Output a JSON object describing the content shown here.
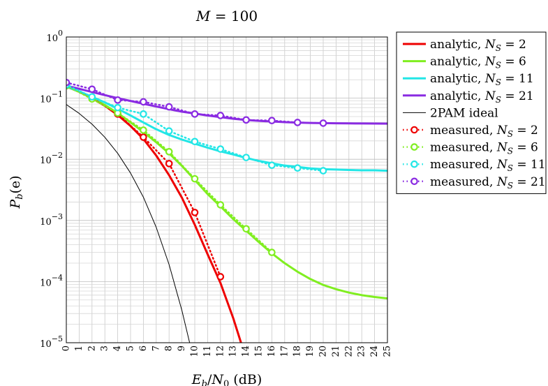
{
  "chart_data": {
    "type": "line",
    "title": "M = 100",
    "title_parts": {
      "var": "M",
      "eq": " = 100"
    },
    "xlabel": "Eb/N0 (dB)",
    "xlabel_parts": {
      "E": "E",
      "b": "b",
      "slash": "/",
      "N": "N",
      "zero": "0",
      "unit": " (dB)"
    },
    "ylabel": "Pb(e)",
    "ylabel_parts": {
      "P": "P",
      "b": "b",
      "arg": "(e)"
    },
    "xlim": [
      0,
      25
    ],
    "ylim": [
      1e-05,
      1
    ],
    "y_scale": "log",
    "grid": true,
    "legend_position": "outside-right-top",
    "x_ticks": [
      "0",
      "1",
      "2",
      "3",
      "4",
      "5",
      "6",
      "7",
      "8",
      "9",
      "10",
      "11",
      "12",
      "13",
      "14",
      "15",
      "16",
      "17",
      "18",
      "19",
      "20",
      "21",
      "22",
      "23",
      "24",
      "25"
    ],
    "y_ticks": [
      {
        "base": "10",
        "exp": "0",
        "value": 1
      },
      {
        "base": "10",
        "exp": "−1",
        "value": 0.1
      },
      {
        "base": "10",
        "exp": "−2",
        "value": 0.01
      },
      {
        "base": "10",
        "exp": "−3",
        "value": 0.001
      },
      {
        "base": "10",
        "exp": "−4",
        "value": 0.0001
      },
      {
        "base": "10",
        "exp": "−5",
        "value": 1e-05
      }
    ],
    "series": [
      {
        "name": "analytic, NS = 2",
        "legend": {
          "text": "analytic, ",
          "var": "N",
          "sub": "S",
          "eq": " = 2"
        },
        "color": "#ee0000",
        "style": "solid",
        "width": 3,
        "x": [
          0,
          1,
          2,
          3,
          4,
          5,
          6,
          7,
          8,
          9,
          10,
          11,
          12,
          13,
          13.6
        ],
        "y": [
          0.155,
          0.127,
          0.1,
          0.075,
          0.053,
          0.035,
          0.0215,
          0.0115,
          0.0055,
          0.00235,
          0.00085,
          0.00028,
          9.5e-05,
          2.5e-05,
          1e-05
        ]
      },
      {
        "name": "analytic, NS = 6",
        "legend": {
          "text": "analytic, ",
          "var": "N",
          "sub": "S",
          "eq": " = 6"
        },
        "color": "#80ee20",
        "style": "solid",
        "width": 3,
        "x": [
          0,
          1,
          2,
          3,
          4,
          5,
          6,
          7,
          8,
          9,
          10,
          11,
          12,
          13,
          14,
          15,
          16,
          17,
          18,
          19,
          20,
          21,
          22,
          23,
          24,
          25
        ],
        "y": [
          0.155,
          0.127,
          0.1,
          0.077,
          0.057,
          0.04,
          0.028,
          0.019,
          0.0125,
          0.0078,
          0.0046,
          0.0027,
          0.0017,
          0.00105,
          0.00068,
          0.00044,
          0.00029,
          0.0002,
          0.000145,
          0.00011,
          8.8e-05,
          7.5e-05,
          6.6e-05,
          6e-05,
          5.6e-05,
          5.3e-05
        ]
      },
      {
        "name": "analytic, NS = 11",
        "legend": {
          "text": "analytic, ",
          "var": "N",
          "sub": "S",
          "eq": " = 11"
        },
        "color": "#22e6e6",
        "style": "solid",
        "width": 3,
        "x": [
          0,
          1,
          2,
          3,
          4,
          5,
          6,
          7,
          8,
          9,
          10,
          11,
          12,
          13,
          14,
          15,
          16,
          17,
          18,
          19,
          20,
          21,
          22,
          23,
          24,
          25
        ],
        "y": [
          0.155,
          0.129,
          0.105,
          0.085,
          0.067,
          0.052,
          0.04,
          0.031,
          0.025,
          0.021,
          0.018,
          0.0155,
          0.0135,
          0.012,
          0.0105,
          0.0094,
          0.0086,
          0.0079,
          0.0075,
          0.0071,
          0.0069,
          0.0068,
          0.0067,
          0.0066,
          0.0066,
          0.0065
        ]
      },
      {
        "name": "analytic, NS = 21",
        "legend": {
          "text": "analytic, ",
          "var": "N",
          "sub": "S",
          "eq": " = 21"
        },
        "color": "#8a2be2",
        "style": "solid",
        "width": 3,
        "x": [
          0,
          1,
          2,
          3,
          4,
          5,
          6,
          7,
          8,
          9,
          10,
          11,
          12,
          13,
          14,
          15,
          16,
          17,
          18,
          19,
          20,
          21,
          22,
          23,
          24,
          25
        ],
        "y": [
          0.16,
          0.142,
          0.126,
          0.112,
          0.1,
          0.09,
          0.081,
          0.073,
          0.066,
          0.06,
          0.056,
          0.052,
          0.049,
          0.046,
          0.044,
          0.0425,
          0.0415,
          0.0405,
          0.0398,
          0.0393,
          0.039,
          0.0388,
          0.0386,
          0.0385,
          0.0384,
          0.0383
        ]
      },
      {
        "name": "2PAM ideal",
        "legend": {
          "text": "2PAM ideal",
          "var": "",
          "sub": "",
          "eq": ""
        },
        "color": "#000000",
        "style": "solid",
        "width": 1,
        "x": [
          0,
          1,
          2,
          3,
          4,
          5,
          6,
          7,
          8,
          9,
          9.6
        ],
        "y": [
          0.0786,
          0.0563,
          0.0375,
          0.0229,
          0.0125,
          0.00595,
          0.0024,
          0.00077,
          0.00019,
          3.36e-05,
          1e-05
        ]
      },
      {
        "name": "measured, NS = 2",
        "legend": {
          "text": "measured, ",
          "var": "N",
          "sub": "S",
          "eq": " = 2"
        },
        "color": "#ee0000",
        "style": "dotted",
        "width": 2.5,
        "marker": "circle",
        "x": [
          0,
          2,
          4,
          6,
          8,
          10,
          12
        ],
        "y": [
          0.16,
          0.1,
          0.055,
          0.023,
          0.0085,
          0.00135,
          0.00012
        ]
      },
      {
        "name": "measured, NS = 6",
        "legend": {
          "text": "measured, ",
          "var": "N",
          "sub": "S",
          "eq": " = 6"
        },
        "color": "#80ee20",
        "style": "dotted",
        "width": 2.5,
        "marker": "circle",
        "x": [
          0,
          2,
          4,
          6,
          8,
          10,
          12,
          14,
          16
        ],
        "y": [
          0.16,
          0.097,
          0.057,
          0.03,
          0.0133,
          0.0048,
          0.0018,
          0.00073,
          0.0003
        ]
      },
      {
        "name": "measured, NS = 11",
        "legend": {
          "text": "measured, ",
          "var": "N",
          "sub": "S",
          "eq": " = 11"
        },
        "color": "#22e6e6",
        "style": "dotted",
        "width": 2.5,
        "marker": "circle",
        "x": [
          0,
          2,
          4,
          6,
          8,
          10,
          12,
          14,
          16,
          18,
          20
        ],
        "y": [
          0.165,
          0.105,
          0.07,
          0.055,
          0.029,
          0.0195,
          0.0147,
          0.0107,
          0.008,
          0.0072,
          0.0065
        ]
      },
      {
        "name": "measured, NS = 21",
        "legend": {
          "text": "measured, ",
          "var": "N",
          "sub": "S",
          "eq": " = 21"
        },
        "color": "#8a2be2",
        "style": "dotted",
        "width": 2.5,
        "marker": "circle",
        "x": [
          0,
          2,
          4,
          6,
          8,
          10,
          12,
          14,
          16,
          18,
          20
        ],
        "y": [
          0.18,
          0.14,
          0.093,
          0.087,
          0.072,
          0.055,
          0.052,
          0.044,
          0.043,
          0.04,
          0.039
        ]
      }
    ]
  }
}
